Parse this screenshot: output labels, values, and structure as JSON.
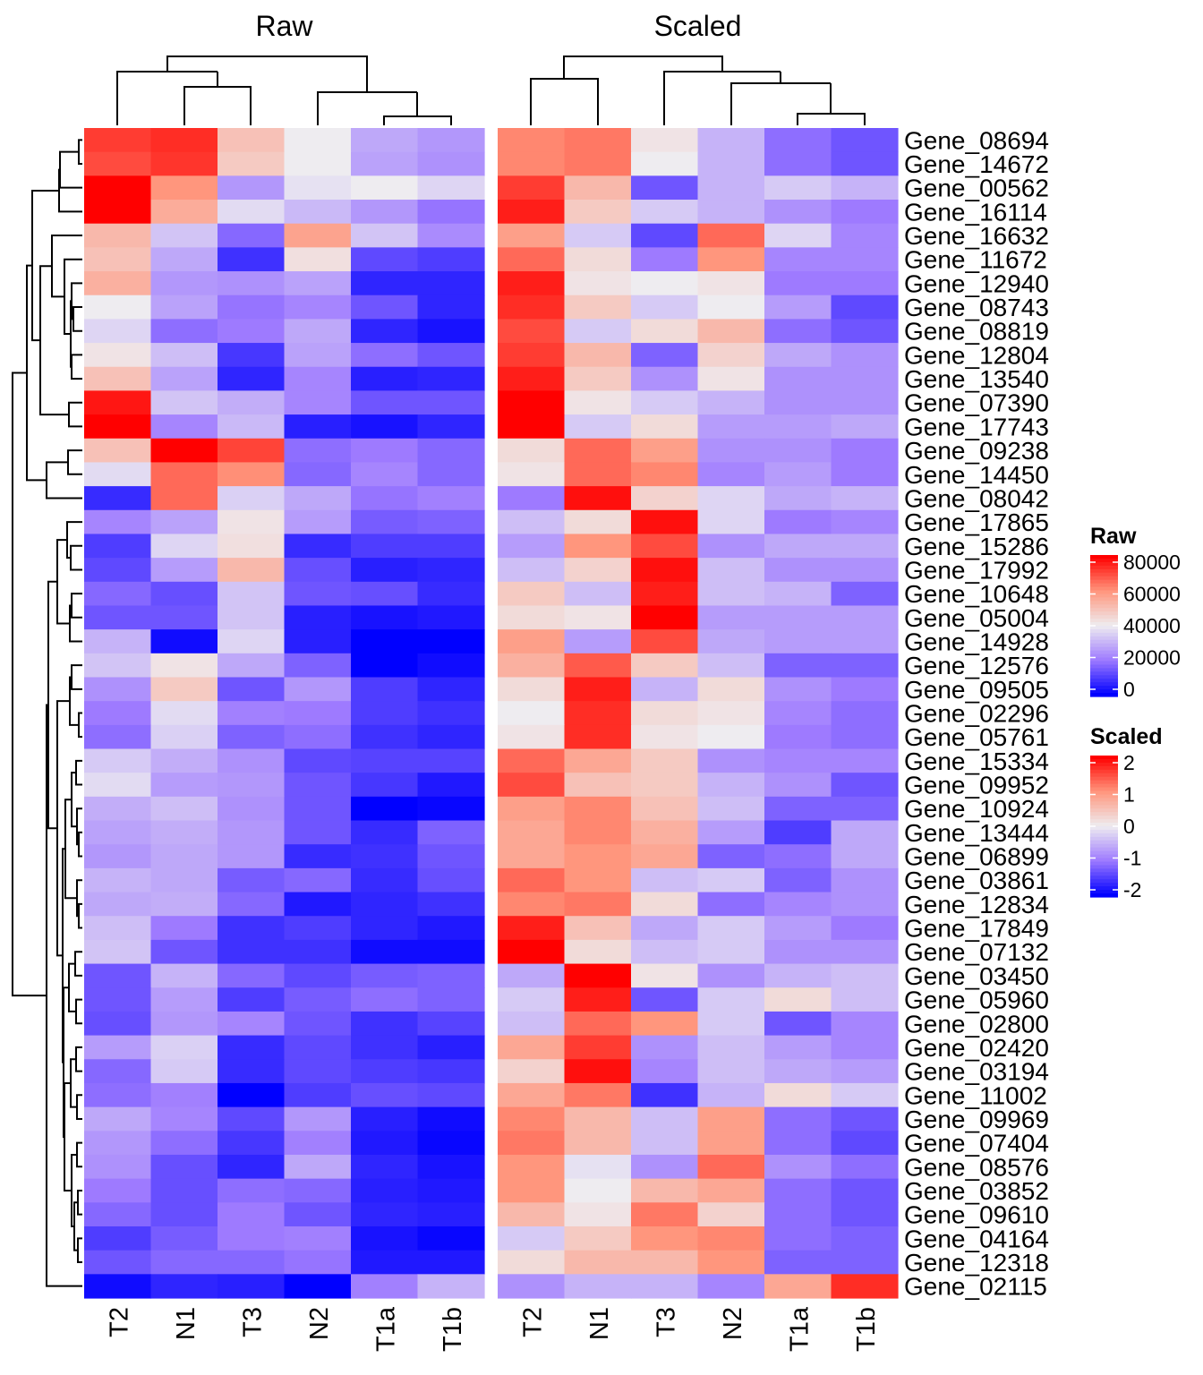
{
  "chart_data": {
    "type": "heatmap",
    "columns": [
      "T2",
      "N1",
      "T3",
      "N2",
      "T1a",
      "T1b"
    ],
    "rows": [
      "Gene_08694",
      "Gene_14672",
      "Gene_00562",
      "Gene_16114",
      "Gene_16632",
      "Gene_11672",
      "Gene_12940",
      "Gene_08743",
      "Gene_08819",
      "Gene_12804",
      "Gene_13540",
      "Gene_07390",
      "Gene_17743",
      "Gene_09238",
      "Gene_14450",
      "Gene_08042",
      "Gene_17865",
      "Gene_15286",
      "Gene_17992",
      "Gene_10648",
      "Gene_05004",
      "Gene_14928",
      "Gene_12576",
      "Gene_09505",
      "Gene_02296",
      "Gene_05761",
      "Gene_15334",
      "Gene_09952",
      "Gene_10924",
      "Gene_13444",
      "Gene_06899",
      "Gene_03861",
      "Gene_12834",
      "Gene_17849",
      "Gene_07132",
      "Gene_03450",
      "Gene_05960",
      "Gene_02800",
      "Gene_02420",
      "Gene_03194",
      "Gene_11002",
      "Gene_09969",
      "Gene_07404",
      "Gene_08576",
      "Gene_03852",
      "Gene_09610",
      "Gene_04164",
      "Gene_12318",
      "Gene_02115"
    ],
    "panels": [
      {
        "title": "Raw",
        "column_order": [
          "T2",
          "N1",
          "T3",
          "N2",
          "T1a",
          "T1b"
        ],
        "legend": {
          "title": "Raw",
          "ticks": [
            "80000",
            "60000",
            "40000",
            "20000",
            "0"
          ],
          "range": [
            0,
            80000
          ]
        },
        "colors": {
          "low": "#0000ff",
          "mid": "#eeeeee",
          "high": "#ff0000"
        },
        "values": [
          [
            72000,
            74000,
            50000,
            40000,
            28000,
            25000
          ],
          [
            70000,
            73000,
            48000,
            40000,
            27000,
            24000
          ],
          [
            80000,
            60000,
            25000,
            38000,
            40000,
            36000
          ],
          [
            80000,
            55000,
            37000,
            31000,
            25000,
            19000
          ],
          [
            52000,
            33000,
            17000,
            57000,
            33000,
            23000
          ],
          [
            50000,
            28000,
            8000,
            43000,
            12000,
            10000
          ],
          [
            54000,
            25000,
            24000,
            27000,
            6000,
            6000
          ],
          [
            40000,
            27000,
            19000,
            22000,
            14000,
            6000
          ],
          [
            36000,
            18000,
            20000,
            28000,
            6000,
            3000
          ],
          [
            42000,
            32000,
            9000,
            27000,
            18000,
            14000
          ],
          [
            50000,
            27000,
            6000,
            22000,
            5000,
            6000
          ],
          [
            77000,
            33000,
            29000,
            22000,
            14000,
            14000
          ],
          [
            80000,
            22000,
            31000,
            5000,
            3000,
            6000
          ],
          [
            50000,
            80000,
            71000,
            18000,
            20000,
            17000
          ],
          [
            37000,
            66000,
            61000,
            17000,
            22000,
            17000
          ],
          [
            7000,
            66000,
            35000,
            28000,
            19000,
            21000
          ],
          [
            22000,
            27000,
            42000,
            26000,
            15000,
            16000
          ],
          [
            10000,
            36000,
            43000,
            7000,
            10000,
            10000
          ],
          [
            12000,
            26000,
            52000,
            13000,
            5000,
            6000
          ],
          [
            17000,
            13000,
            33000,
            14000,
            13000,
            7000
          ],
          [
            14000,
            14000,
            33000,
            5000,
            3000,
            4000
          ],
          [
            30000,
            2000,
            36000,
            5000,
            0,
            0
          ],
          [
            33000,
            42000,
            28000,
            16000,
            0,
            2000
          ],
          [
            24000,
            48000,
            14000,
            25000,
            10000,
            6000
          ],
          [
            20000,
            37000,
            21000,
            20000,
            10000,
            8000
          ],
          [
            18000,
            35000,
            16000,
            18000,
            8000,
            6000
          ],
          [
            34000,
            29000,
            24000,
            12000,
            11000,
            11000
          ],
          [
            37000,
            26000,
            25000,
            14000,
            9000,
            4000
          ],
          [
            29000,
            32000,
            24000,
            14000,
            0,
            1000
          ],
          [
            27000,
            29000,
            25000,
            14000,
            7000,
            16000
          ],
          [
            25000,
            28000,
            25000,
            7000,
            8000,
            14000
          ],
          [
            30000,
            28000,
            15000,
            17000,
            7000,
            13000
          ],
          [
            28000,
            29000,
            17000,
            4000,
            6000,
            8000
          ],
          [
            32000,
            20000,
            8000,
            10000,
            6000,
            4000
          ],
          [
            33000,
            14000,
            8000,
            8000,
            2000,
            2000
          ],
          [
            14000,
            30000,
            17000,
            12000,
            15000,
            16000
          ],
          [
            14000,
            26000,
            10000,
            15000,
            18000,
            16000
          ],
          [
            13000,
            25000,
            22000,
            14000,
            8000,
            11000
          ],
          [
            26000,
            35000,
            7000,
            12000,
            8000,
            5000
          ],
          [
            17000,
            34000,
            7000,
            12000,
            10000,
            9000
          ],
          [
            18000,
            21000,
            0,
            10000,
            13000,
            12000
          ],
          [
            28000,
            22000,
            12000,
            25000,
            5000,
            2000
          ],
          [
            25000,
            18000,
            9000,
            21000,
            4000,
            1000
          ],
          [
            24000,
            13000,
            6000,
            28000,
            6000,
            3000
          ],
          [
            20000,
            13000,
            18000,
            17000,
            5000,
            4000
          ],
          [
            17000,
            13000,
            20000,
            14000,
            6000,
            5000
          ],
          [
            10000,
            15000,
            20000,
            21000,
            3000,
            1000
          ],
          [
            14000,
            17000,
            17000,
            19000,
            4000,
            4000
          ],
          [
            2000,
            6000,
            5000,
            0,
            21000,
            30000
          ]
        ]
      },
      {
        "title": "Scaled",
        "column_order": [
          "T2",
          "N1",
          "T3",
          "N2",
          "T1a",
          "T1b"
        ],
        "legend": {
          "title": "Scaled",
          "ticks": [
            "2",
            "1",
            "0",
            "-1",
            "-2"
          ],
          "range": [
            -2,
            2
          ]
        },
        "colors": {
          "low": "#0000ff",
          "mid": "#eeeeee",
          "high": "#ff0000"
        },
        "values": [
          [
            1.1,
            1.2,
            0.1,
            -0.5,
            -1.1,
            -1.3
          ],
          [
            1.1,
            1.2,
            0.0,
            -0.5,
            -1.1,
            -1.3
          ],
          [
            1.6,
            0.6,
            -1.3,
            -0.5,
            -0.3,
            -0.5
          ],
          [
            1.8,
            0.4,
            -0.3,
            -0.5,
            -0.8,
            -1.0
          ],
          [
            0.9,
            -0.3,
            -1.4,
            1.3,
            -0.2,
            -0.9
          ],
          [
            1.3,
            0.2,
            -1.0,
            1.0,
            -0.9,
            -0.9
          ],
          [
            1.8,
            0.1,
            0.0,
            0.1,
            -1.0,
            -1.0
          ],
          [
            1.7,
            0.4,
            -0.3,
            0.0,
            -0.7,
            -1.4
          ],
          [
            1.5,
            -0.3,
            0.2,
            0.6,
            -1.1,
            -1.3
          ],
          [
            1.6,
            0.6,
            -1.2,
            0.3,
            -0.6,
            -0.8
          ],
          [
            1.8,
            0.4,
            -0.8,
            0.1,
            -0.8,
            -0.8
          ],
          [
            2.0,
            0.1,
            -0.3,
            -0.5,
            -0.8,
            -0.8
          ],
          [
            2.0,
            -0.3,
            0.2,
            -0.7,
            -0.7,
            -0.6
          ],
          [
            0.2,
            1.3,
            0.9,
            -0.8,
            -0.8,
            -1.0
          ],
          [
            0.1,
            1.3,
            1.1,
            -0.9,
            -0.7,
            -1.0
          ],
          [
            -1.0,
            1.9,
            0.3,
            -0.2,
            -0.6,
            -0.5
          ],
          [
            -0.4,
            0.2,
            1.9,
            -0.2,
            -1.0,
            -0.9
          ],
          [
            -0.7,
            1.0,
            1.5,
            -0.8,
            -0.6,
            -0.6
          ],
          [
            -0.4,
            0.3,
            1.9,
            -0.4,
            -0.8,
            -0.8
          ],
          [
            0.4,
            -0.4,
            1.8,
            -0.4,
            -0.5,
            -1.2
          ],
          [
            0.2,
            0.1,
            2.0,
            -0.7,
            -0.7,
            -0.7
          ],
          [
            0.9,
            -0.7,
            1.5,
            -0.6,
            -0.7,
            -0.7
          ],
          [
            0.7,
            1.4,
            0.4,
            -0.4,
            -1.2,
            -1.2
          ],
          [
            0.2,
            1.8,
            -0.5,
            0.2,
            -0.8,
            -1.0
          ],
          [
            0.0,
            1.7,
            0.2,
            0.1,
            -0.9,
            -1.1
          ],
          [
            0.1,
            1.7,
            0.1,
            0.0,
            -1.0,
            -1.1
          ],
          [
            1.3,
            0.8,
            0.4,
            -0.8,
            -0.9,
            -0.9
          ],
          [
            1.5,
            0.5,
            0.4,
            -0.5,
            -0.8,
            -1.3
          ],
          [
            0.9,
            1.1,
            0.5,
            -0.4,
            -1.2,
            -1.2
          ],
          [
            0.8,
            1.1,
            0.7,
            -0.7,
            -1.5,
            -0.6
          ],
          [
            0.8,
            1.0,
            0.8,
            -1.2,
            -1.1,
            -0.6
          ],
          [
            1.3,
            1.0,
            -0.4,
            -0.3,
            -1.2,
            -0.8
          ],
          [
            1.1,
            1.2,
            0.2,
            -1.1,
            -0.9,
            -0.8
          ],
          [
            1.8,
            0.5,
            -0.6,
            -0.3,
            -0.7,
            -1.0
          ],
          [
            2.0,
            0.2,
            -0.4,
            -0.3,
            -0.8,
            -0.8
          ],
          [
            -0.6,
            2.0,
            0.1,
            -0.8,
            -0.5,
            -0.4
          ],
          [
            -0.3,
            1.8,
            -1.3,
            -0.3,
            0.2,
            -0.4
          ],
          [
            -0.4,
            1.3,
            1.0,
            -0.3,
            -1.3,
            -0.9
          ],
          [
            0.8,
            1.6,
            -0.8,
            -0.4,
            -0.7,
            -0.9
          ],
          [
            0.3,
            1.9,
            -0.9,
            -0.4,
            -0.6,
            -0.7
          ],
          [
            0.8,
            1.2,
            -1.6,
            -0.5,
            0.2,
            -0.3
          ],
          [
            1.1,
            0.6,
            -0.4,
            0.9,
            -1.1,
            -1.3
          ],
          [
            1.2,
            0.6,
            -0.4,
            0.9,
            -1.1,
            -1.4
          ],
          [
            1.0,
            -0.1,
            -0.8,
            1.3,
            -0.8,
            -1.1
          ],
          [
            1.0,
            0.0,
            0.6,
            0.8,
            -1.1,
            -1.3
          ],
          [
            0.6,
            0.1,
            1.2,
            0.3,
            -1.1,
            -1.3
          ],
          [
            -0.3,
            0.4,
            1.0,
            1.1,
            -1.1,
            -1.2
          ],
          [
            0.2,
            0.6,
            0.6,
            1.0,
            -1.2,
            -1.2
          ],
          [
            -0.8,
            -0.5,
            -0.5,
            -0.9,
            0.8,
            1.7
          ]
        ]
      }
    ]
  }
}
